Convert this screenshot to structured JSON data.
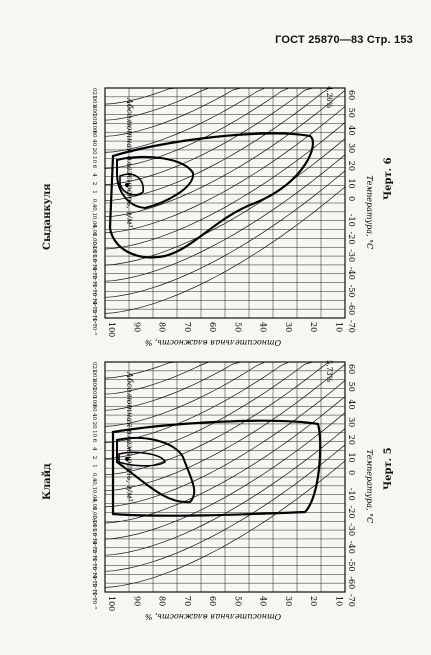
{
  "header": {
    "text": "ГОСТ 25870—83 Стр. 153"
  },
  "charts": [
    {
      "material": "Сыданкуля",
      "figure_label": "Черт. 6",
      "corner_note": "4,26%",
      "abs_axis_label": "Абсолютная влажность, г/м³",
      "rel_axis_label": "Относительная влажность, %",
      "temp_axis_label": "Температура, °C",
      "temp_ticks": [
        "-70",
        "-60",
        "-50",
        "-40",
        "-30",
        "-20",
        "-10",
        "0",
        "10",
        "20",
        "30",
        "40",
        "50",
        "60"
      ],
      "rh_ticks": [
        "100",
        "90",
        "80",
        "70",
        "60",
        "50",
        "40",
        "30",
        "20",
        "10"
      ],
      "abs_ticks": [
        "1·10⁻⁵",
        "2·10⁻⁵",
        "4·10⁻⁵",
        "6·10⁻⁵",
        "1·10⁻⁴",
        "2·10⁻⁴",
        "4·10⁻⁴",
        "6·10⁻⁴",
        "1·10⁻³",
        "0,001",
        "0,004",
        "0,01",
        "0,04",
        "0,1",
        "0,4",
        "1",
        "2",
        "4",
        "6",
        "10",
        "20",
        "40",
        "60",
        "100",
        "200",
        "400",
        "001",
        "021"
      ]
    },
    {
      "material": "Клайд",
      "figure_label": "Черт. 5",
      "corner_note": "5,73%",
      "abs_axis_label": "Абсолютная влажность, г/м³",
      "rel_axis_label": "Относительная влажность, %",
      "temp_axis_label": "Температура, °C",
      "temp_ticks": [
        "-70",
        "-60",
        "-50",
        "-40",
        "-30",
        "-20",
        "-10",
        "0",
        "10",
        "20",
        "30",
        "40",
        "50",
        "60"
      ],
      "rh_ticks": [
        "100",
        "90",
        "80",
        "70",
        "60",
        "50",
        "40",
        "30",
        "20",
        "10"
      ],
      "abs_ticks": [
        "1·10⁻⁵",
        "2·10⁻⁵",
        "4·10⁻⁵",
        "6·10⁻⁵",
        "1·10⁻⁴",
        "2·10⁻⁴",
        "4·10⁻⁴",
        "6·10⁻⁴",
        "1·10⁻³",
        "0,001",
        "0,004",
        "0,01",
        "0,04",
        "0,1",
        "0,4",
        "1",
        "2",
        "4",
        "6",
        "10",
        "20",
        "40",
        "60",
        "100",
        "200",
        "400",
        "001",
        "021"
      ]
    }
  ]
}
